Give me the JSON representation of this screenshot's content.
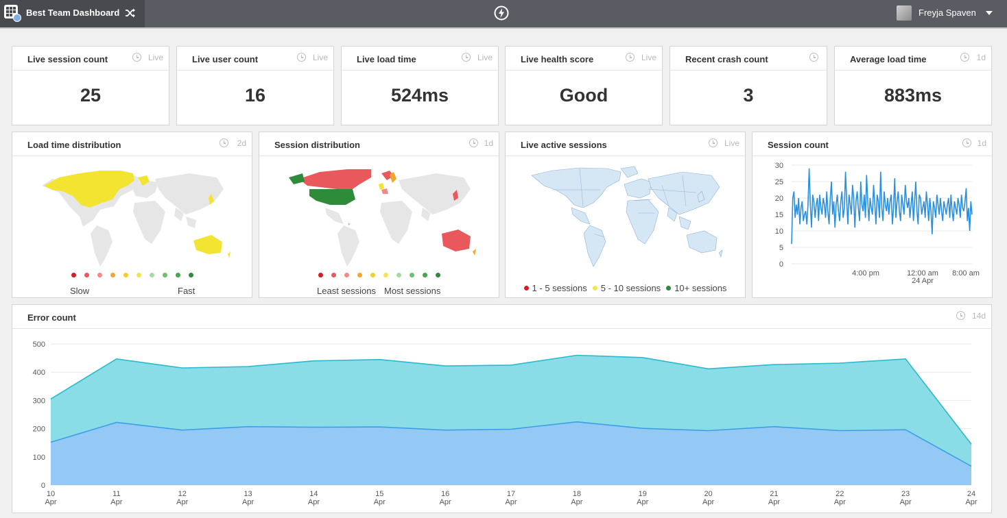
{
  "header": {
    "dashboard_title": "Best Team Dashboard",
    "user_name": "Freyja Spaven"
  },
  "stat_cards": [
    {
      "title": "Live session count",
      "period": "Live",
      "value": "25"
    },
    {
      "title": "Live user count",
      "period": "Live",
      "value": "16"
    },
    {
      "title": "Live load time",
      "period": "Live",
      "value": "524ms"
    },
    {
      "title": "Live health score",
      "period": "Live",
      "value": "Good"
    },
    {
      "title": "Recent crash count",
      "period": "",
      "value": "3"
    },
    {
      "title": "Average load time",
      "period": "1d",
      "value": "883ms"
    }
  ],
  "maps": {
    "load_time": {
      "title": "Load time distribution",
      "period": "2d",
      "legend_low": "Slow",
      "legend_high": "Fast",
      "scale_colors": [
        "#d11f26",
        "#e8585c",
        "#f08a8a",
        "#f4a52c",
        "#f2cf2e",
        "#f2e64c",
        "#a8d8a4",
        "#6cc070",
        "#4aa552",
        "#2e8b3a"
      ]
    },
    "session_distribution": {
      "title": "Session distribution",
      "period": "1d",
      "legend_low": "Least sessions",
      "legend_high": "Most sessions",
      "scale_colors": [
        "#d11f26",
        "#e8585c",
        "#f08a8a",
        "#f4a52c",
        "#f2cf2e",
        "#f2e64c",
        "#a8d8a4",
        "#6cc070",
        "#4aa552",
        "#2e8b3a"
      ]
    },
    "live_active": {
      "title": "Live active sessions",
      "period": "Live",
      "legend": [
        {
          "label": "1 - 5 sessions",
          "color": "#d11f26"
        },
        {
          "label": "5 - 10 sessions",
          "color": "#f2e64c"
        },
        {
          "label": "10+ sessions",
          "color": "#2e8b3a"
        }
      ]
    }
  },
  "session_count_widget": {
    "title": "Session count",
    "period": "1d"
  },
  "error_count_widget": {
    "title": "Error count",
    "period": "14d"
  },
  "chart_data": [
    {
      "type": "line",
      "title": "Session count",
      "ylim": [
        0,
        30
      ],
      "yticks": [
        0,
        5,
        10,
        15,
        20,
        25,
        30
      ],
      "xtick_labels": [
        {
          "line1": "4:00 pm",
          "line2": ""
        },
        {
          "line1": "12:00 am",
          "line2": "24 Apr"
        },
        {
          "line1": "8:00 am",
          "line2": ""
        }
      ],
      "grid": true,
      "color": "#2b8fe0",
      "series": [
        {
          "values": [
            6,
            20,
            22,
            14,
            18,
            15,
            20,
            12,
            17,
            19,
            13,
            15,
            16,
            12,
            18,
            29,
            18,
            11,
            21,
            19,
            14,
            18,
            20,
            13,
            21,
            17,
            15,
            20,
            18,
            14,
            22,
            16,
            12,
            20,
            25,
            15,
            19,
            11,
            18,
            21,
            16,
            13,
            19,
            22,
            14,
            17,
            28,
            19,
            12,
            21,
            18,
            15,
            24,
            20,
            11,
            19,
            22,
            17,
            13,
            25,
            18,
            16,
            21,
            14,
            27,
            19,
            13,
            20,
            17,
            15,
            24,
            18,
            12,
            21,
            19,
            14,
            28,
            17,
            13,
            22,
            18,
            16,
            20,
            15,
            19,
            21,
            12,
            17,
            26,
            14,
            19,
            22,
            16,
            13,
            21,
            18,
            15,
            24,
            19,
            17,
            20,
            14,
            18,
            22,
            13,
            19,
            25,
            16,
            12,
            21,
            20,
            15,
            17,
            19,
            14,
            22,
            18,
            13,
            20,
            16,
            9,
            19,
            17,
            14,
            21,
            18,
            15,
            20,
            16,
            13,
            19,
            17,
            15,
            18,
            20,
            14,
            21,
            16,
            13,
            19,
            17,
            15,
            20,
            18,
            14,
            21,
            17,
            16,
            19,
            23,
            13,
            17,
            10,
            19,
            15
          ]
        }
      ]
    },
    {
      "type": "area",
      "title": "Error count",
      "ylim": [
        0,
        500
      ],
      "yticks": [
        0,
        100,
        200,
        300,
        400,
        500
      ],
      "categories": [
        "10 Apr",
        "11 Apr",
        "12 Apr",
        "13 Apr",
        "14 Apr",
        "15 Apr",
        "16 Apr",
        "17 Apr",
        "18 Apr",
        "19 Apr",
        "20 Apr",
        "21 Apr",
        "22 Apr",
        "23 Apr",
        "24 Apr"
      ],
      "grid": true,
      "series": [
        {
          "color": "#29b9cf",
          "fill": "#8adde6",
          "values": [
            305,
            447,
            415,
            420,
            440,
            445,
            422,
            425,
            460,
            452,
            412,
            427,
            432,
            447,
            145
          ]
        },
        {
          "color": "#3a9ee8",
          "fill": "#94c9f6",
          "values": [
            152,
            222,
            195,
            207,
            205,
            206,
            195,
            198,
            224,
            201,
            193,
            207,
            193,
            196,
            67
          ]
        }
      ]
    }
  ]
}
